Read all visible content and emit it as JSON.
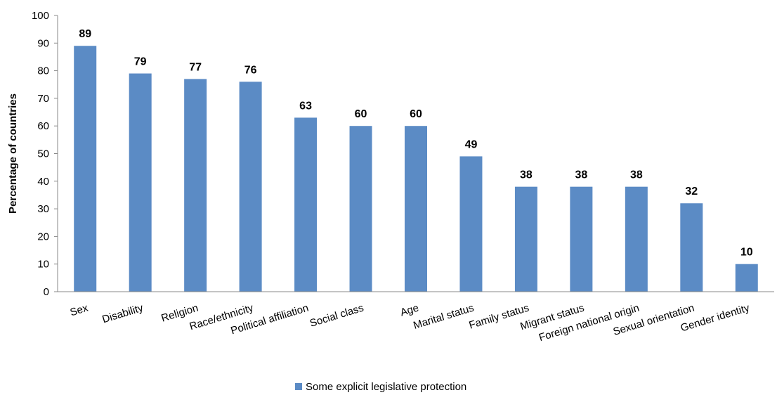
{
  "chart_data": {
    "type": "bar",
    "title": "",
    "xlabel": "",
    "ylabel": "Percentage of countries",
    "ylim": [
      0,
      100
    ],
    "yticks": [
      0,
      10,
      20,
      30,
      40,
      50,
      60,
      70,
      80,
      90,
      100
    ],
    "grid": false,
    "legend_position": "bottom-center",
    "categories": [
      "Sex",
      "Disability",
      "Religion",
      "Race/ethnicity",
      "Political affiliation",
      "Social class",
      "Age",
      "Marital status",
      "Family status",
      "Migrant status",
      "Foreign national origin",
      "Sexual orientation",
      "Gender identity"
    ],
    "series": [
      {
        "name": "Some explicit legislative protection",
        "color": "#5b8bc5",
        "values": [
          89,
          79,
          77,
          76,
          63,
          60,
          60,
          49,
          38,
          38,
          38,
          32,
          10
        ]
      }
    ]
  }
}
